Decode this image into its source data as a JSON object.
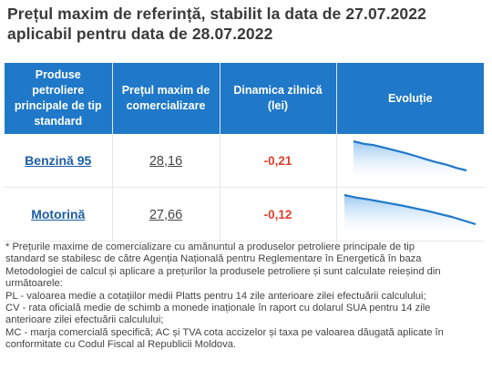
{
  "title": {
    "line1": "Prețul maxim de referință, stabilit la data de 27.07.2022",
    "line2": "aplicabil pentru data de 28.07.2022"
  },
  "table": {
    "headers": [
      "Produse petroliere principale de tip standard",
      "Prețul maxim de comercializare",
      "Dinamica zilnică (lei)",
      "Evoluție"
    ],
    "rows": [
      {
        "product": "Benzină 95",
        "price": "28,16",
        "change": "-0,21",
        "trend": [
          100,
          92,
          88,
          80,
          72,
          64,
          55,
          45,
          36,
          28,
          18,
          10
        ]
      },
      {
        "product": "Motorină",
        "price": "27,66",
        "change": "-0,12",
        "trend": [
          100,
          93,
          88,
          82,
          76,
          70,
          63,
          56,
          48,
          40,
          30,
          20
        ]
      }
    ],
    "accent": "#1f78c8",
    "change_color": "#e2402b"
  },
  "notes": {
    "lines": [
      "* Prețurile maxime de comercializare cu amănuntul a produselor petroliere principale de tip",
      "standard se stabilesc de către Agenția Națională pentru Reglementare în Energetică în baza",
      "Metodologiei de calcul și aplicare a prețurilor la produsele petroliere și sunt calculate reieșind din",
      "următoarele:",
      "PL - valoarea medie a cotațiilor medii Platts pentru 14 zile anterioare zilei efectuării calculului;",
      "CV - rata oficială medie de schimb a monede inaționale în raport cu dolarul SUA pentru 14 zile",
      "anterioare zilei efectuării calculului;",
      "MC - marja comercială specifică; AC și TVA cota accizelor și taxa pe valoarea dăugată aplicate în",
      "conformitate cu Codul Fiscal al Republicii Moldova."
    ]
  }
}
